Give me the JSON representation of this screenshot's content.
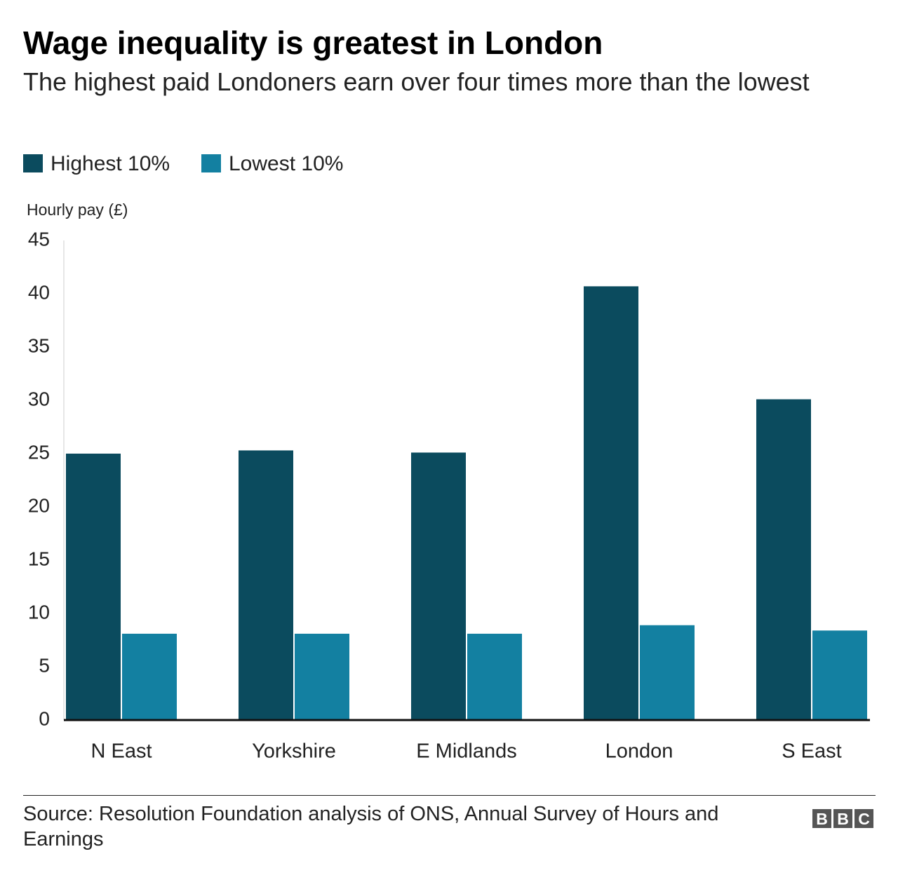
{
  "chart_data": {
    "type": "bar",
    "title": "Wage inequality is greatest in London",
    "subtitle": "The highest paid Londoners earn over four times more than the lowest",
    "y_label": "Hourly pay (£)",
    "categories": [
      "N East",
      "Yorkshire",
      "E Midlands",
      "London",
      "S East"
    ],
    "series": [
      {
        "name": "Highest 10%",
        "color": "#0b4b5e",
        "values": [
          25,
          25.3,
          25.1,
          40.7,
          30.1
        ]
      },
      {
        "name": "Lowest 10%",
        "color": "#1380a1",
        "values": [
          8.1,
          8.1,
          8.1,
          8.9,
          8.4
        ]
      }
    ],
    "ylim": [
      0,
      45
    ],
    "yticks": [
      0,
      5,
      10,
      15,
      20,
      25,
      30,
      35,
      40,
      45
    ],
    "grid": false,
    "legend": "top-left",
    "source": "Source: Resolution Foundation analysis of ONS, Annual Survey of Hours and Earnings",
    "logo": [
      "B",
      "B",
      "C"
    ]
  }
}
